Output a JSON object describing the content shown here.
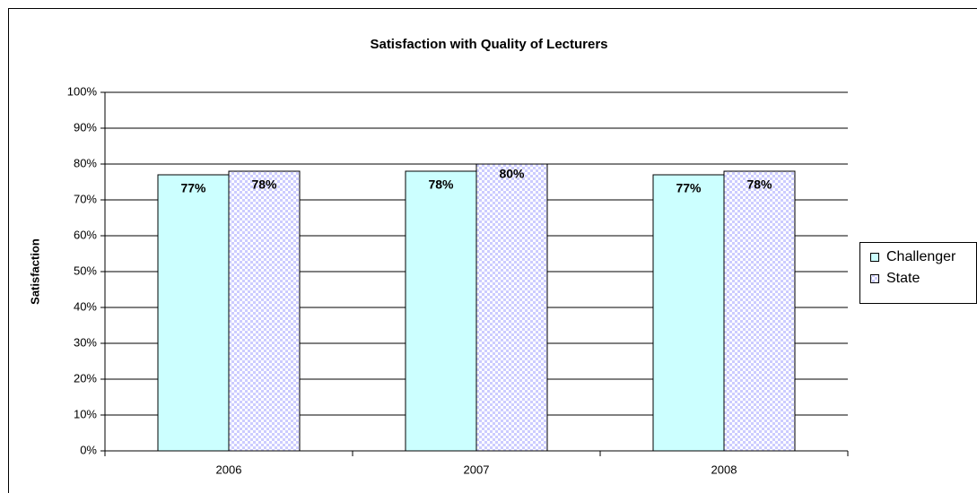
{
  "chart_data": {
    "type": "bar",
    "title": "Satisfaction with Quality of Lecturers",
    "y_label": "Satisfaction",
    "categories": [
      "2006",
      "2007",
      "2008"
    ],
    "series": [
      {
        "name": "Challenger",
        "color": "#ccffff",
        "values": [
          77,
          78,
          77
        ],
        "value_labels": [
          "77%",
          "78%",
          "77%"
        ]
      },
      {
        "name": "State",
        "color": "#ccccff",
        "values": [
          78,
          80,
          78
        ],
        "value_labels": [
          "78%",
          "80%",
          "78%"
        ]
      }
    ],
    "ylim": [
      0,
      100
    ],
    "yticks": [
      {
        "value": 0,
        "label": "0%"
      },
      {
        "value": 10,
        "label": "10%"
      },
      {
        "value": 20,
        "label": "20%"
      },
      {
        "value": 30,
        "label": "30%"
      },
      {
        "value": 40,
        "label": "40%"
      },
      {
        "value": 50,
        "label": "50%"
      },
      {
        "value": 60,
        "label": "60%"
      },
      {
        "value": 70,
        "label": "70%"
      },
      {
        "value": 80,
        "label": "80%"
      },
      {
        "value": 90,
        "label": "90%"
      },
      {
        "value": 100,
        "label": "100%"
      }
    ],
    "grid": true,
    "legend": "right"
  }
}
